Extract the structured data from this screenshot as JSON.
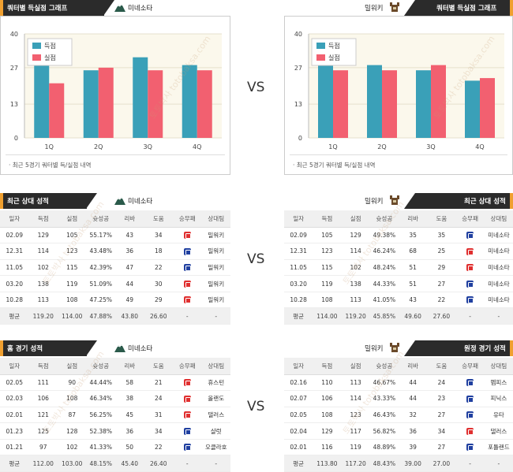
{
  "vs_label": "VS",
  "watermark": "토토박사 totobaksa.com",
  "home_team": "미네소타",
  "away_team": "밀워키",
  "quarter_chart": {
    "title": "쿼터별 득실점 그래프",
    "note": "· 최근 5경기 쿼터별 득/실점 내역",
    "legend_scored": "득점",
    "legend_allowed": "실점",
    "y_ticks": [
      "40",
      "27",
      "13",
      "0"
    ],
    "colors": {
      "scored": "#3aa0b8",
      "allowed": "#f26070"
    }
  },
  "chart_data": [
    {
      "type": "bar",
      "categories": [
        "1Q",
        "2Q",
        "3Q",
        "4Q"
      ],
      "series": [
        {
          "name": "득점",
          "values": [
            33,
            26,
            31,
            28
          ]
        },
        {
          "name": "실점",
          "values": [
            21,
            27,
            26,
            26
          ]
        }
      ],
      "ylim": [
        0,
        40
      ]
    },
    {
      "type": "bar",
      "categories": [
        "1Q",
        "2Q",
        "3Q",
        "4Q"
      ],
      "series": [
        {
          "name": "득점",
          "values": [
            28,
            28,
            26,
            22
          ]
        },
        {
          "name": "실점",
          "values": [
            26,
            26,
            28,
            23
          ]
        }
      ],
      "ylim": [
        0,
        40
      ]
    }
  ],
  "recent": {
    "title": "최근 상대 성적",
    "headers": [
      "일자",
      "득점",
      "실점",
      "슛성공",
      "리바",
      "도움",
      "승무패",
      "상대팀"
    ],
    "left_rows": [
      {
        "date": "02.09",
        "pts": "129",
        "opp": "105",
        "fg": "55.17%",
        "reb": "43",
        "ast": "34",
        "res": "L",
        "team": "밀워키"
      },
      {
        "date": "12.31",
        "pts": "114",
        "opp": "123",
        "fg": "43.48%",
        "reb": "36",
        "ast": "18",
        "res": "W",
        "team": "밀워키"
      },
      {
        "date": "11.05",
        "pts": "102",
        "opp": "115",
        "fg": "42.39%",
        "reb": "47",
        "ast": "22",
        "res": "W",
        "team": "밀워키"
      },
      {
        "date": "03.20",
        "pts": "138",
        "opp": "119",
        "fg": "51.09%",
        "reb": "44",
        "ast": "30",
        "res": "L",
        "team": "밀워키"
      },
      {
        "date": "10.28",
        "pts": "113",
        "opp": "108",
        "fg": "47.25%",
        "reb": "49",
        "ast": "29",
        "res": "L",
        "team": "밀워키"
      }
    ],
    "left_avg": {
      "label": "평균",
      "pts": "119.20",
      "opp": "114.00",
      "fg": "47.88%",
      "reb": "43.80",
      "ast": "26.60",
      "res": "-",
      "team": "-"
    },
    "right_rows": [
      {
        "date": "02.09",
        "pts": "105",
        "opp": "129",
        "fg": "49.38%",
        "reb": "35",
        "ast": "35",
        "res": "W",
        "team": "미네소타"
      },
      {
        "date": "12.31",
        "pts": "123",
        "opp": "114",
        "fg": "46.24%",
        "reb": "68",
        "ast": "25",
        "res": "L",
        "team": "미네소타"
      },
      {
        "date": "11.05",
        "pts": "115",
        "opp": "102",
        "fg": "48.24%",
        "reb": "51",
        "ast": "29",
        "res": "L",
        "team": "미네소타"
      },
      {
        "date": "03.20",
        "pts": "119",
        "opp": "138",
        "fg": "44.33%",
        "reb": "51",
        "ast": "27",
        "res": "W",
        "team": "미네소타"
      },
      {
        "date": "10.28",
        "pts": "108",
        "opp": "113",
        "fg": "41.05%",
        "reb": "43",
        "ast": "22",
        "res": "W",
        "team": "미네소타"
      }
    ],
    "right_avg": {
      "label": "평균",
      "pts": "114.00",
      "opp": "119.20",
      "fg": "45.85%",
      "reb": "49.60",
      "ast": "27.60",
      "res": "-",
      "team": "-"
    }
  },
  "home_games": {
    "title": "홈 경기 성적",
    "rows": [
      {
        "date": "02.05",
        "pts": "111",
        "opp": "90",
        "fg": "44.44%",
        "reb": "58",
        "ast": "21",
        "res": "L",
        "team": "휴스턴"
      },
      {
        "date": "02.03",
        "pts": "106",
        "opp": "108",
        "fg": "46.34%",
        "reb": "38",
        "ast": "24",
        "res": "L",
        "team": "올랜도"
      },
      {
        "date": "02.01",
        "pts": "121",
        "opp": "87",
        "fg": "56.25%",
        "reb": "45",
        "ast": "31",
        "res": "L",
        "team": "댈러스"
      },
      {
        "date": "01.23",
        "pts": "125",
        "opp": "128",
        "fg": "52.38%",
        "reb": "36",
        "ast": "34",
        "res": "W",
        "team": "샬럿"
      },
      {
        "date": "01.21",
        "pts": "97",
        "opp": "102",
        "fg": "41.33%",
        "reb": "50",
        "ast": "22",
        "res": "W",
        "team": "오클라호"
      }
    ],
    "avg": {
      "label": "평균",
      "pts": "112.00",
      "opp": "103.00",
      "fg": "48.15%",
      "reb": "45.40",
      "ast": "26.40",
      "res": "-",
      "team": "-"
    }
  },
  "away_games": {
    "title": "원정 경기 성적",
    "rows": [
      {
        "date": "02.16",
        "pts": "110",
        "opp": "113",
        "fg": "46.67%",
        "reb": "44",
        "ast": "24",
        "res": "W",
        "team": "멤피스"
      },
      {
        "date": "02.07",
        "pts": "106",
        "opp": "114",
        "fg": "43.33%",
        "reb": "44",
        "ast": "23",
        "res": "W",
        "team": "피닉스"
      },
      {
        "date": "02.05",
        "pts": "108",
        "opp": "123",
        "fg": "46.43%",
        "reb": "32",
        "ast": "27",
        "res": "W",
        "team": "유타"
      },
      {
        "date": "02.04",
        "pts": "129",
        "opp": "117",
        "fg": "56.82%",
        "reb": "36",
        "ast": "34",
        "res": "L",
        "team": "댈러스"
      },
      {
        "date": "02.01",
        "pts": "116",
        "opp": "119",
        "fg": "48.89%",
        "reb": "39",
        "ast": "27",
        "res": "W",
        "team": "포틀랜드"
      }
    ],
    "avg": {
      "label": "평균",
      "pts": "113.80",
      "opp": "117.20",
      "fg": "48.43%",
      "reb": "39.00",
      "ast": "27.00",
      "res": "-",
      "team": "-"
    }
  }
}
